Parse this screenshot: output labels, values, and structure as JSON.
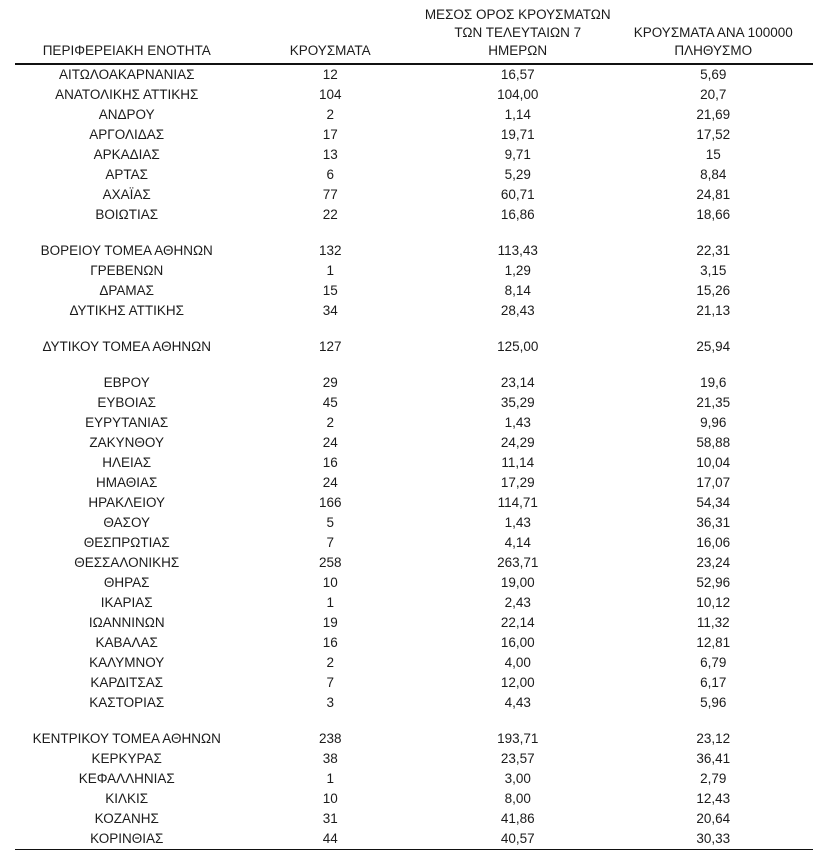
{
  "table": {
    "columns": [
      {
        "id": "region",
        "label": "ΠΕΡΙΦΕΡΕΙΑΚΗ ΕΝΟΤΗΤΑ"
      },
      {
        "id": "cases",
        "label": "ΚΡΟΥΣΜΑΤΑ"
      },
      {
        "id": "avg7",
        "label": "ΜΕΣΟΣ ΟΡΟΣ ΚΡΟΥΣΜΑΤΩΝ\nΤΩΝ ΤΕΛΕΥΤΑΙΩΝ 7\nΗΜΕΡΩΝ"
      },
      {
        "id": "per100k",
        "label": "ΚΡΟΥΣΜΑΤΑ ΑΝΑ 100000\nΠΛΗΘΥΣΜΟ"
      }
    ],
    "rows": [
      {
        "region": "ΑΙΤΩΛΟΑΚΑΡΝΑΝΙΑΣ",
        "cases": "12",
        "avg7": "16,57",
        "per100k": "5,69"
      },
      {
        "region": "ΑΝΑΤΟΛΙΚΗΣ ΑΤΤΙΚΗΣ",
        "cases": "104",
        "avg7": "104,00",
        "per100k": "20,7"
      },
      {
        "region": "ΑΝΔΡΟΥ",
        "cases": "2",
        "avg7": "1,14",
        "per100k": "21,69"
      },
      {
        "region": "ΑΡΓΟΛΙΔΑΣ",
        "cases": "17",
        "avg7": "19,71",
        "per100k": "17,52"
      },
      {
        "region": "ΑΡΚΑΔΙΑΣ",
        "cases": "13",
        "avg7": "9,71",
        "per100k": "15"
      },
      {
        "region": "ΑΡΤΑΣ",
        "cases": "6",
        "avg7": "5,29",
        "per100k": "8,84"
      },
      {
        "region": "ΑΧΑΪΑΣ",
        "cases": "77",
        "avg7": "60,71",
        "per100k": "24,81"
      },
      {
        "region": "ΒΟΙΩΤΙΑΣ",
        "cases": "22",
        "avg7": "16,86",
        "per100k": "18,66"
      },
      {
        "region": "ΒΟΡΕΙΟΥ ΤΟΜΕΑ ΑΘΗΝΩΝ",
        "cases": "132",
        "avg7": "113,43",
        "per100k": "22,31",
        "gap_before": true
      },
      {
        "region": "ΓΡΕΒΕΝΩΝ",
        "cases": "1",
        "avg7": "1,29",
        "per100k": "3,15"
      },
      {
        "region": "ΔΡΑΜΑΣ",
        "cases": "15",
        "avg7": "8,14",
        "per100k": "15,26"
      },
      {
        "region": "ΔΥΤΙΚΗΣ ΑΤΤΙΚΗΣ",
        "cases": "34",
        "avg7": "28,43",
        "per100k": "21,13"
      },
      {
        "region": "ΔΥΤΙΚΟΥ ΤΟΜΕΑ ΑΘΗΝΩΝ",
        "cases": "127",
        "avg7": "125,00",
        "per100k": "25,94",
        "gap_before": true
      },
      {
        "region": "ΕΒΡΟΥ",
        "cases": "29",
        "avg7": "23,14",
        "per100k": "19,6",
        "gap_before": true
      },
      {
        "region": "ΕΥΒΟΙΑΣ",
        "cases": "45",
        "avg7": "35,29",
        "per100k": "21,35"
      },
      {
        "region": "ΕΥΡΥΤΑΝΙΑΣ",
        "cases": "2",
        "avg7": "1,43",
        "per100k": "9,96"
      },
      {
        "region": "ΖΑΚΥΝΘΟΥ",
        "cases": "24",
        "avg7": "24,29",
        "per100k": "58,88"
      },
      {
        "region": "ΗΛΕΙΑΣ",
        "cases": "16",
        "avg7": "11,14",
        "per100k": "10,04"
      },
      {
        "region": "ΗΜΑΘΙΑΣ",
        "cases": "24",
        "avg7": "17,29",
        "per100k": "17,07"
      },
      {
        "region": "ΗΡΑΚΛΕΙΟΥ",
        "cases": "166",
        "avg7": "114,71",
        "per100k": "54,34"
      },
      {
        "region": "ΘΑΣΟΥ",
        "cases": "5",
        "avg7": "1,43",
        "per100k": "36,31"
      },
      {
        "region": "ΘΕΣΠΡΩΤΙΑΣ",
        "cases": "7",
        "avg7": "4,14",
        "per100k": "16,06"
      },
      {
        "region": "ΘΕΣΣΑΛΟΝΙΚΗΣ",
        "cases": "258",
        "avg7": "263,71",
        "per100k": "23,24"
      },
      {
        "region": "ΘΗΡΑΣ",
        "cases": "10",
        "avg7": "19,00",
        "per100k": "52,96"
      },
      {
        "region": "ΙΚΑΡΙΑΣ",
        "cases": "1",
        "avg7": "2,43",
        "per100k": "10,12"
      },
      {
        "region": "ΙΩΑΝΝΙΝΩΝ",
        "cases": "19",
        "avg7": "22,14",
        "per100k": "11,32"
      },
      {
        "region": "ΚΑΒΑΛΑΣ",
        "cases": "16",
        "avg7": "16,00",
        "per100k": "12,81"
      },
      {
        "region": "ΚΑΛΥΜΝΟΥ",
        "cases": "2",
        "avg7": "4,00",
        "per100k": "6,79"
      },
      {
        "region": "ΚΑΡΔΙΤΣΑΣ",
        "cases": "7",
        "avg7": "12,00",
        "per100k": "6,17"
      },
      {
        "region": "ΚΑΣΤΟΡΙΑΣ",
        "cases": "3",
        "avg7": "4,43",
        "per100k": "5,96"
      },
      {
        "region": "ΚΕΝΤΡΙΚΟΥ ΤΟΜΕΑ ΑΘΗΝΩΝ",
        "cases": "238",
        "avg7": "193,71",
        "per100k": "23,12",
        "gap_before": true
      },
      {
        "region": "ΚΕΡΚΥΡΑΣ",
        "cases": "38",
        "avg7": "23,57",
        "per100k": "36,41"
      },
      {
        "region": "ΚΕΦΑΛΛΗΝΙΑΣ",
        "cases": "1",
        "avg7": "3,00",
        "per100k": "2,79"
      },
      {
        "region": "ΚΙΛΚΙΣ",
        "cases": "10",
        "avg7": "8,00",
        "per100k": "12,43"
      },
      {
        "region": "ΚΟΖΑΝΗΣ",
        "cases": "31",
        "avg7": "41,86",
        "per100k": "20,64"
      },
      {
        "region": "ΚΟΡΙΝΘΙΑΣ",
        "cases": "44",
        "avg7": "40,57",
        "per100k": "30,33"
      }
    ]
  }
}
